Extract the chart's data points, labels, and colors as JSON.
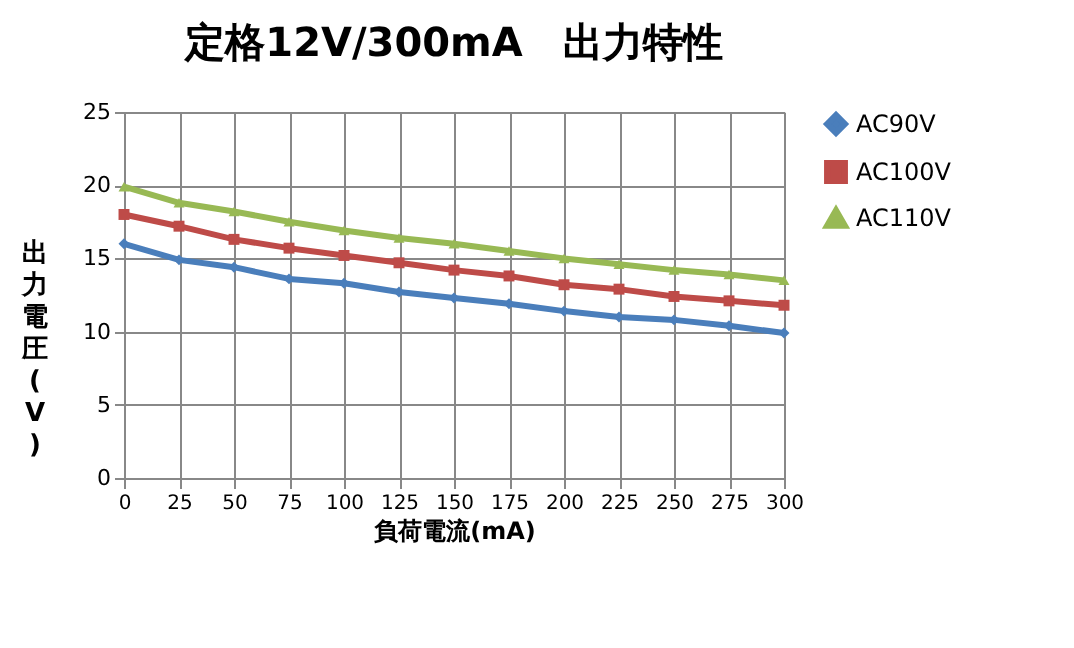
{
  "chart_data": {
    "type": "line",
    "title": "定格12V/300mA　出力特性",
    "xlabel": "負荷電流(mA)",
    "ylabel": "出力電圧(V)",
    "x": [
      0,
      25,
      50,
      75,
      100,
      125,
      150,
      175,
      200,
      225,
      250,
      275,
      300
    ],
    "xlim": [
      0,
      300
    ],
    "xticks": [
      0,
      25,
      50,
      75,
      100,
      125,
      150,
      175,
      200,
      225,
      250,
      275,
      300
    ],
    "ylim": [
      0,
      25
    ],
    "yticks": [
      0,
      5,
      10,
      15,
      20,
      25
    ],
    "grid": true,
    "legend": "right",
    "series": [
      {
        "name": "AC90V",
        "color": "#4a7ebb",
        "marker": "diamond",
        "values": [
          16.0,
          14.9,
          14.4,
          13.6,
          13.3,
          12.7,
          12.3,
          11.9,
          11.4,
          11.0,
          10.8,
          10.4,
          9.9
        ]
      },
      {
        "name": "AC100V",
        "color": "#be4b48",
        "marker": "square",
        "values": [
          18.0,
          17.2,
          16.3,
          15.7,
          15.2,
          14.7,
          14.2,
          13.8,
          13.2,
          12.9,
          12.4,
          12.1,
          11.8
        ]
      },
      {
        "name": "AC110V",
        "color": "#98b954",
        "marker": "triangle",
        "values": [
          19.9,
          18.8,
          18.2,
          17.5,
          16.9,
          16.4,
          16.0,
          15.5,
          15.0,
          14.6,
          14.2,
          13.9,
          13.5
        ]
      }
    ]
  }
}
